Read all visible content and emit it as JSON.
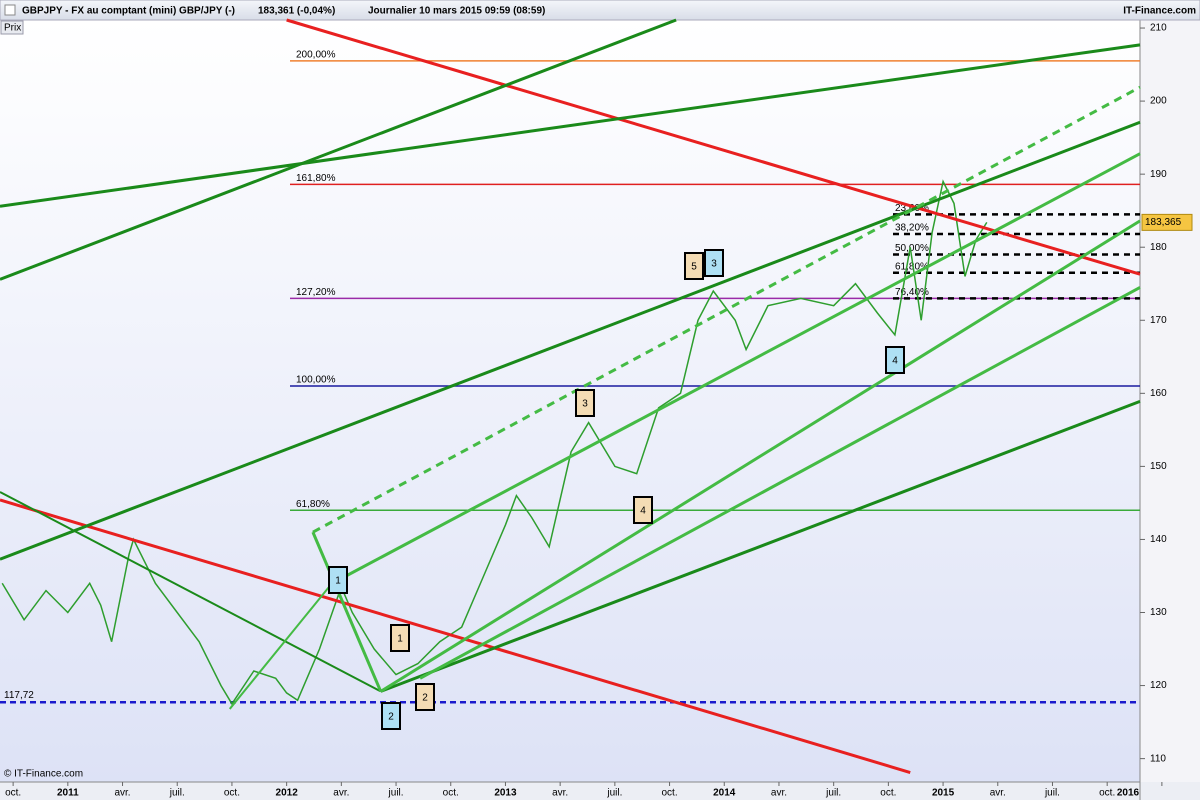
{
  "header": {
    "instrument": "GBPJPY - FX au comptant  (mini) GBP/JPY (-)",
    "quote": "183,361 (-0,04%)",
    "period": "Journalier  10 mars 2015 09:59 (08:59)",
    "brand": "IT-Finance.com"
  },
  "chart_data": {
    "type": "line",
    "axis_label": "Prix",
    "copyright": "© IT-Finance.com",
    "xlim": [
      2010.69,
      2015.9
    ],
    "ylim": [
      106.8,
      211.1
    ],
    "yticks": [
      110,
      120,
      130,
      140,
      150,
      160,
      170,
      180,
      190,
      200,
      210
    ],
    "xticks": [
      {
        "value": 2010.75,
        "label": "oct."
      },
      {
        "value": 2011,
        "label": "2011"
      },
      {
        "value": 2011.25,
        "label": "avr."
      },
      {
        "value": 2011.5,
        "label": "juil."
      },
      {
        "value": 2011.75,
        "label": "oct."
      },
      {
        "value": 2012,
        "label": "2012"
      },
      {
        "value": 2012.25,
        "label": "avr."
      },
      {
        "value": 2012.5,
        "label": "juil."
      },
      {
        "value": 2012.75,
        "label": "oct."
      },
      {
        "value": 2013,
        "label": "2013"
      },
      {
        "value": 2013.25,
        "label": "avr."
      },
      {
        "value": 2013.5,
        "label": "juil."
      },
      {
        "value": 2013.75,
        "label": "oct."
      },
      {
        "value": 2014,
        "label": "2014"
      },
      {
        "value": 2014.25,
        "label": "avr."
      },
      {
        "value": 2014.5,
        "label": "juil."
      },
      {
        "value": 2014.75,
        "label": "oct."
      },
      {
        "value": 2015,
        "label": "2015"
      },
      {
        "value": 2015.25,
        "label": "avr."
      },
      {
        "value": 2015.5,
        "label": "juil."
      },
      {
        "value": 2015.75,
        "label": "oct."
      },
      {
        "value": 2016,
        "label": "2016"
      }
    ],
    "series": [
      {
        "name": "GBPJPY",
        "color": "#2e9e2e",
        "x": [
          2010.7,
          2010.8,
          2010.9,
          2011.0,
          2011.1,
          2011.15,
          2011.2,
          2011.28,
          2011.3,
          2011.4,
          2011.5,
          2011.6,
          2011.7,
          2011.75,
          2011.85,
          2011.95,
          2012.0,
          2012.05,
          2012.15,
          2012.22,
          2012.25,
          2012.3,
          2012.4,
          2012.5,
          2012.6,
          2012.7,
          2012.8,
          2012.9,
          2013.0,
          2013.05,
          2013.12,
          2013.2,
          2013.3,
          2013.38,
          2013.5,
          2013.6,
          2013.7,
          2013.8,
          2013.88,
          2013.95,
          2014.05,
          2014.1,
          2014.2,
          2014.35,
          2014.5,
          2014.6,
          2014.7,
          2014.78,
          2014.85,
          2014.9,
          2014.95,
          2015.0,
          2015.05,
          2015.1,
          2015.15,
          2015.2
        ],
        "values": [
          134,
          129,
          133,
          130,
          134,
          131,
          126,
          138,
          140,
          134,
          130,
          126,
          120,
          117.5,
          122,
          121,
          119,
          118,
          125,
          131,
          133.5,
          130,
          125,
          121.5,
          123,
          126,
          128,
          135,
          142,
          146,
          143,
          139,
          152,
          156,
          150,
          149,
          158,
          160,
          170,
          174,
          170,
          166,
          172,
          173,
          172,
          175,
          171,
          168,
          180,
          170,
          182,
          189,
          186,
          176,
          181,
          183.4
        ]
      }
    ],
    "last_price_label": "183,365",
    "support": {
      "value": 117.72,
      "label": "117,72",
      "color": "#1a1acc"
    },
    "fib_levels": [
      {
        "value": 205.5,
        "label": "200,00%",
        "color": "#f08030"
      },
      {
        "value": 188.6,
        "label": "161,80%",
        "color": "#e02020"
      },
      {
        "value": 173,
        "label": "127,20%",
        "color": "#9a2aa8"
      },
      {
        "value": 161,
        "label": "100,00%",
        "color": "#1a1aa0"
      },
      {
        "value": 144,
        "label": "61,80%",
        "color": "#3aaa3a"
      }
    ],
    "retracements": [
      {
        "value": 184.5,
        "label": "23,60%"
      },
      {
        "value": 181.8,
        "label": "38,20%"
      },
      {
        "value": 179,
        "label": "50,00%"
      },
      {
        "value": 176.5,
        "label": "61,80%"
      },
      {
        "value": 173,
        "label": "76,40%"
      }
    ],
    "trendlines": [
      {
        "points": [
          2012.0,
          211.1,
          2015.9,
          176.3
        ],
        "color": "#e82020",
        "width": 3,
        "dashed": false
      },
      {
        "points": [
          2010.69,
          145.4,
          2014.85,
          108.1
        ],
        "color": "#e82020",
        "width": 3,
        "dashed": false
      },
      {
        "points": [
          2010.69,
          185.6,
          2015.9,
          207.7
        ],
        "color": "#1a8a1a",
        "width": 3,
        "dashed": false
      },
      {
        "points": [
          2010.69,
          175.6,
          2013.78,
          211.1
        ],
        "color": "#1a8a1a",
        "width": 3,
        "dashed": false
      },
      {
        "points": [
          2010.69,
          137.3,
          2015.9,
          197.1
        ],
        "color": "#1a8a1a",
        "width": 3,
        "dashed": false
      },
      {
        "points": [
          2010.69,
          146.5,
          2012.43,
          119.2
        ],
        "color": "#1a8a1a",
        "width": 2,
        "dashed": false
      },
      {
        "points": [
          2012.43,
          119.2,
          2015.9,
          158.9
        ],
        "color": "#1a8a1a",
        "width": 3,
        "dashed": false
      },
      {
        "points": [
          2011.74,
          116.8,
          2012.24,
          135.2
        ],
        "color": "#44bb44",
        "width": 2,
        "dashed": false
      },
      {
        "points": [
          2012.24,
          134.5,
          2015.9,
          192.8
        ],
        "color": "#44bb44",
        "width": 3,
        "dashed": false
      },
      {
        "points": [
          2012.43,
          119.2,
          2015.9,
          183.6
        ],
        "color": "#44bb44",
        "width": 3,
        "dashed": false
      },
      {
        "points": [
          2012.61,
          121.0,
          2015.9,
          174.5
        ],
        "color": "#44bb44",
        "width": 3,
        "dashed": false
      },
      {
        "points": [
          2012.12,
          141.0,
          2012.43,
          119.2
        ],
        "color": "#44bb44",
        "width": 3,
        "dashed": false
      },
      {
        "points": [
          2012.12,
          141.0,
          2015.9,
          201.9
        ],
        "color": "#44bb44",
        "width": 3,
        "dashed": true
      }
    ],
    "wave_labels": [
      {
        "label": "1",
        "kind": "major"
      },
      {
        "label": "2",
        "kind": "major"
      },
      {
        "label": "1",
        "kind": "minor"
      },
      {
        "label": "2",
        "kind": "minor"
      },
      {
        "label": "3",
        "kind": "minor"
      },
      {
        "label": "4",
        "kind": "minor"
      },
      {
        "label": "5",
        "kind": "minor"
      },
      {
        "label": "3",
        "kind": "major"
      },
      {
        "label": "4",
        "kind": "major"
      }
    ]
  }
}
